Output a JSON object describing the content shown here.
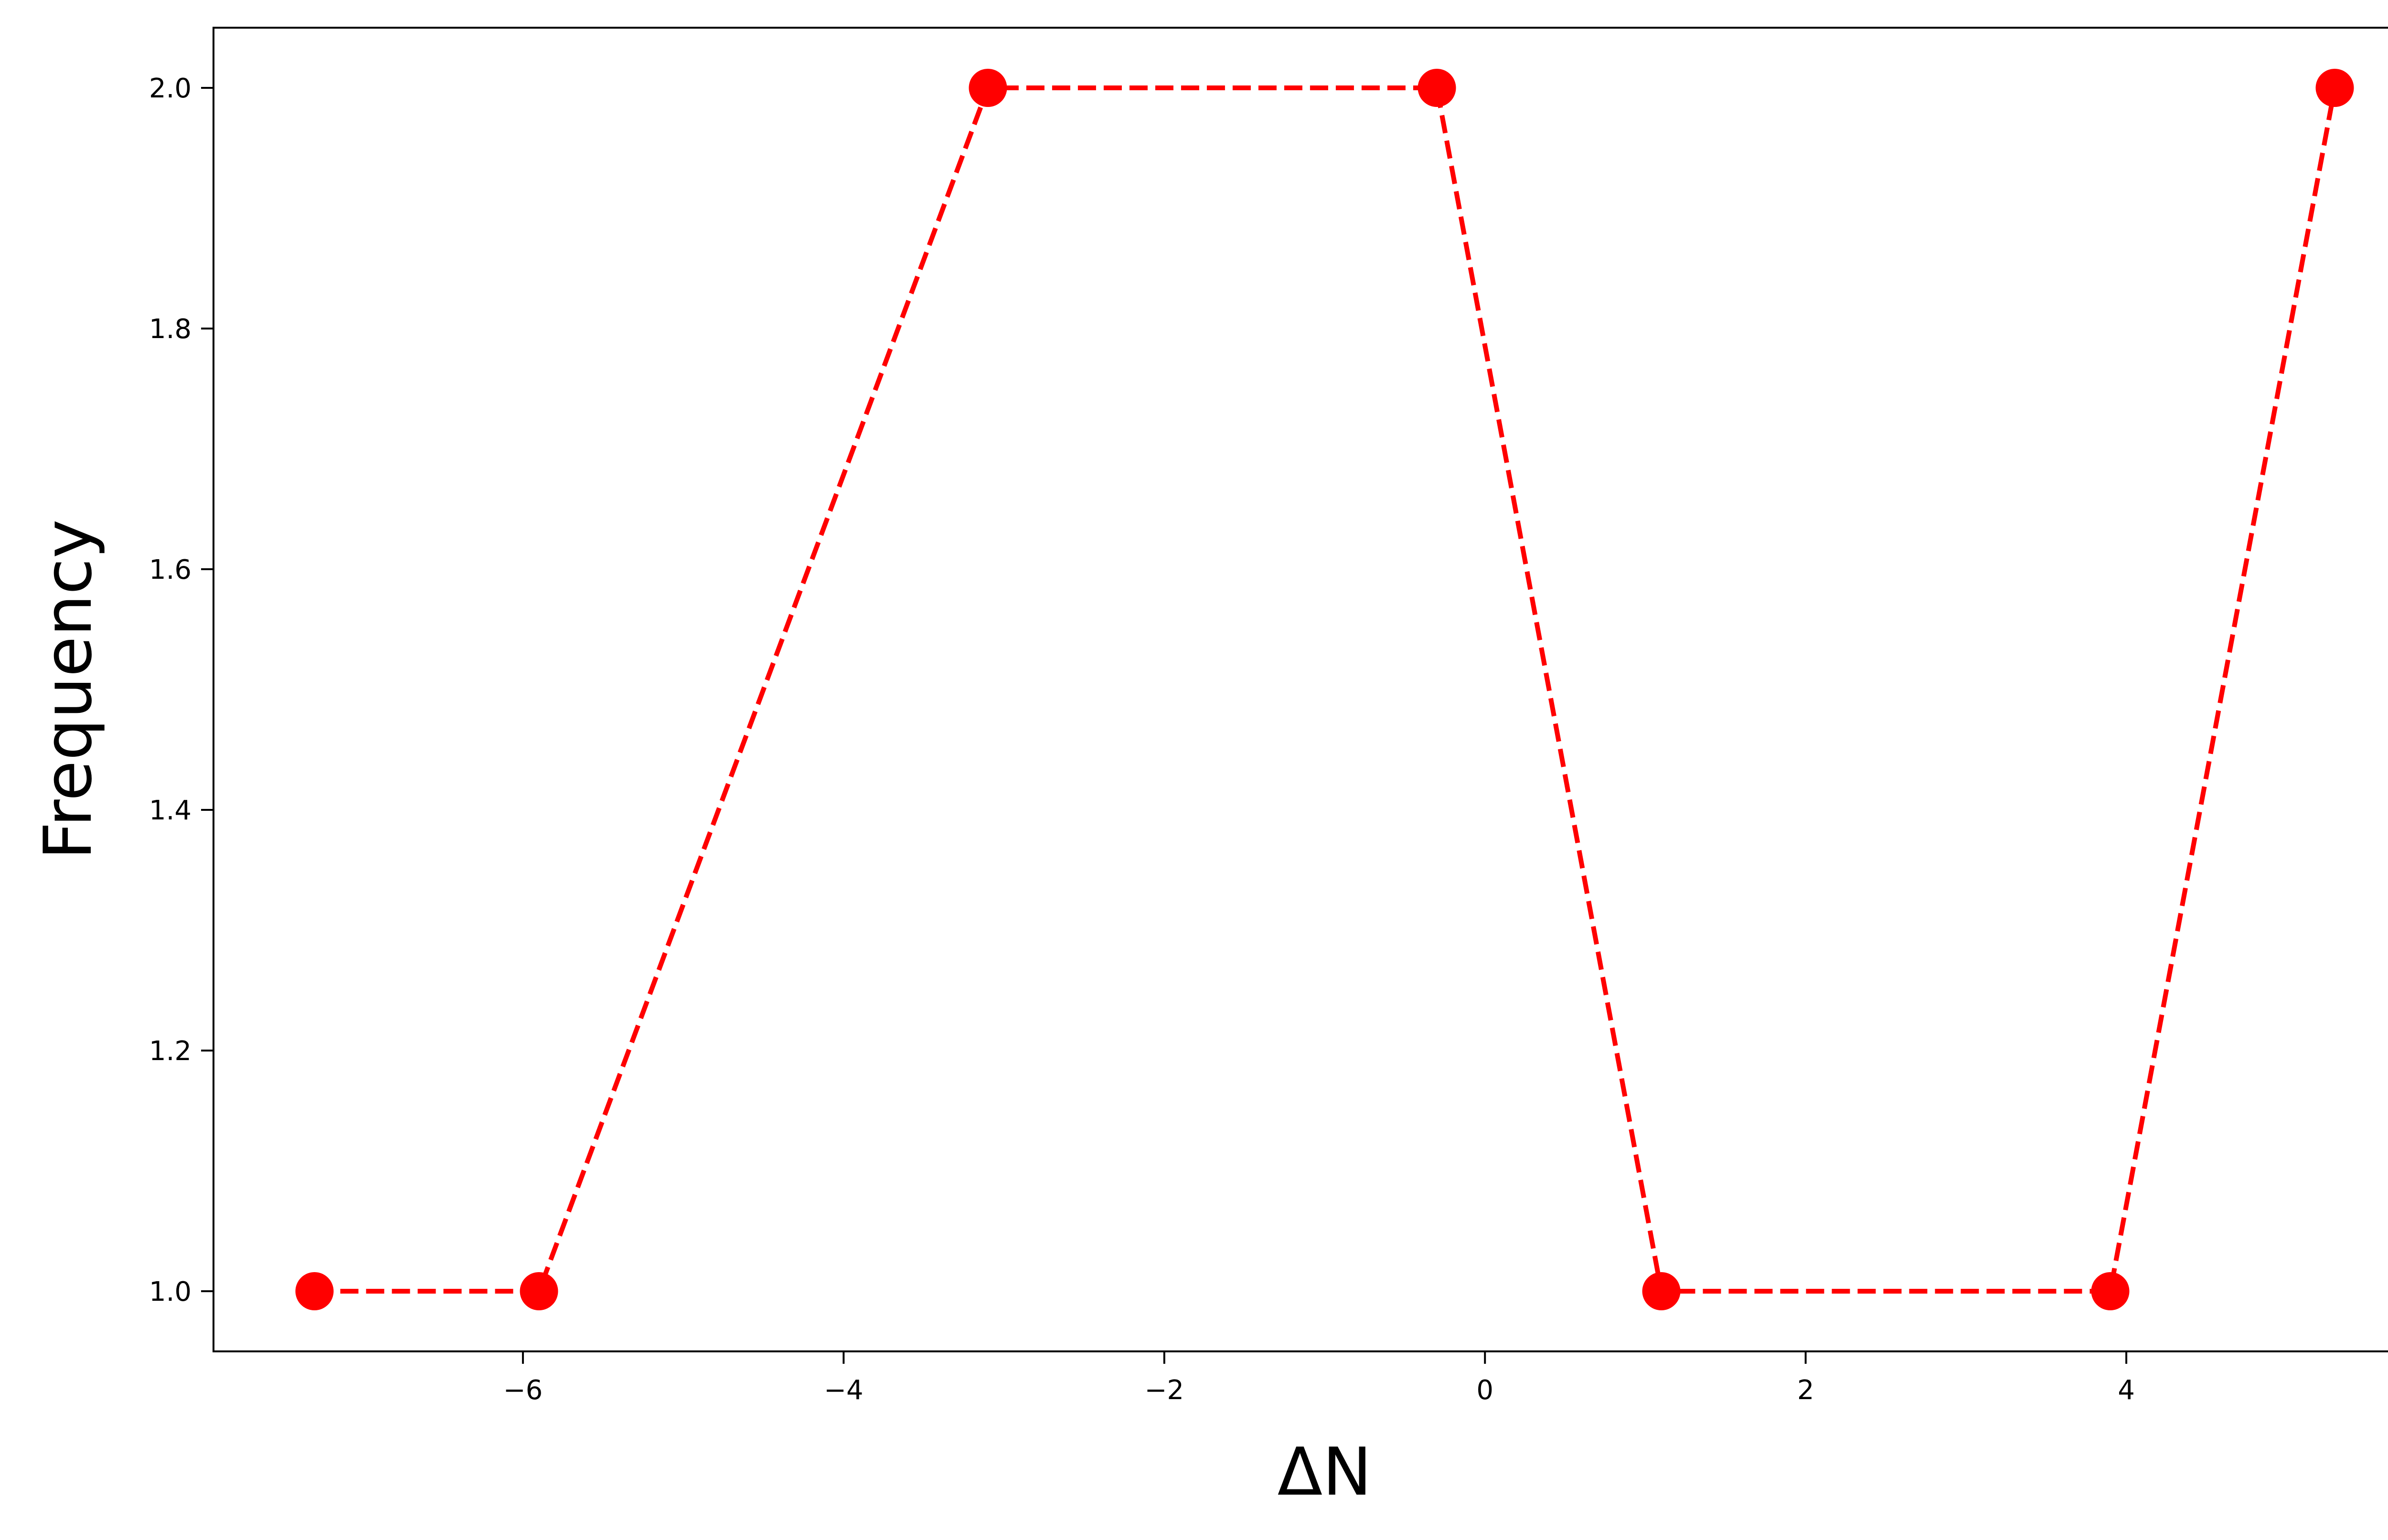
{
  "chart_data": {
    "type": "line",
    "title": "",
    "xlabel": "ΔN",
    "ylabel": "Frequency",
    "x": [
      -7.3,
      -5.9,
      -3.1,
      -0.3,
      1.1,
      3.9,
      5.3
    ],
    "series": [
      {
        "values": [
          1,
          1,
          2,
          2,
          1,
          1,
          2
        ],
        "color": "#ff0000",
        "line_style": "dashed",
        "marker": "circle"
      }
    ],
    "xlim": [
      -7.93,
      5.93
    ],
    "ylim": [
      0.95,
      2.05
    ],
    "x_ticks": [
      -6,
      -4,
      -2,
      0,
      2,
      4
    ],
    "x_tick_labels": [
      "−6",
      "−4",
      "−2",
      "0",
      "2",
      "4"
    ],
    "y_ticks": [
      1.0,
      1.2,
      1.4,
      1.6,
      1.8,
      2.0
    ],
    "y_tick_labels": [
      "1.0",
      "1.2",
      "1.4",
      "1.6",
      "1.8",
      "2.0"
    ],
    "grid": false,
    "legend": "none"
  }
}
